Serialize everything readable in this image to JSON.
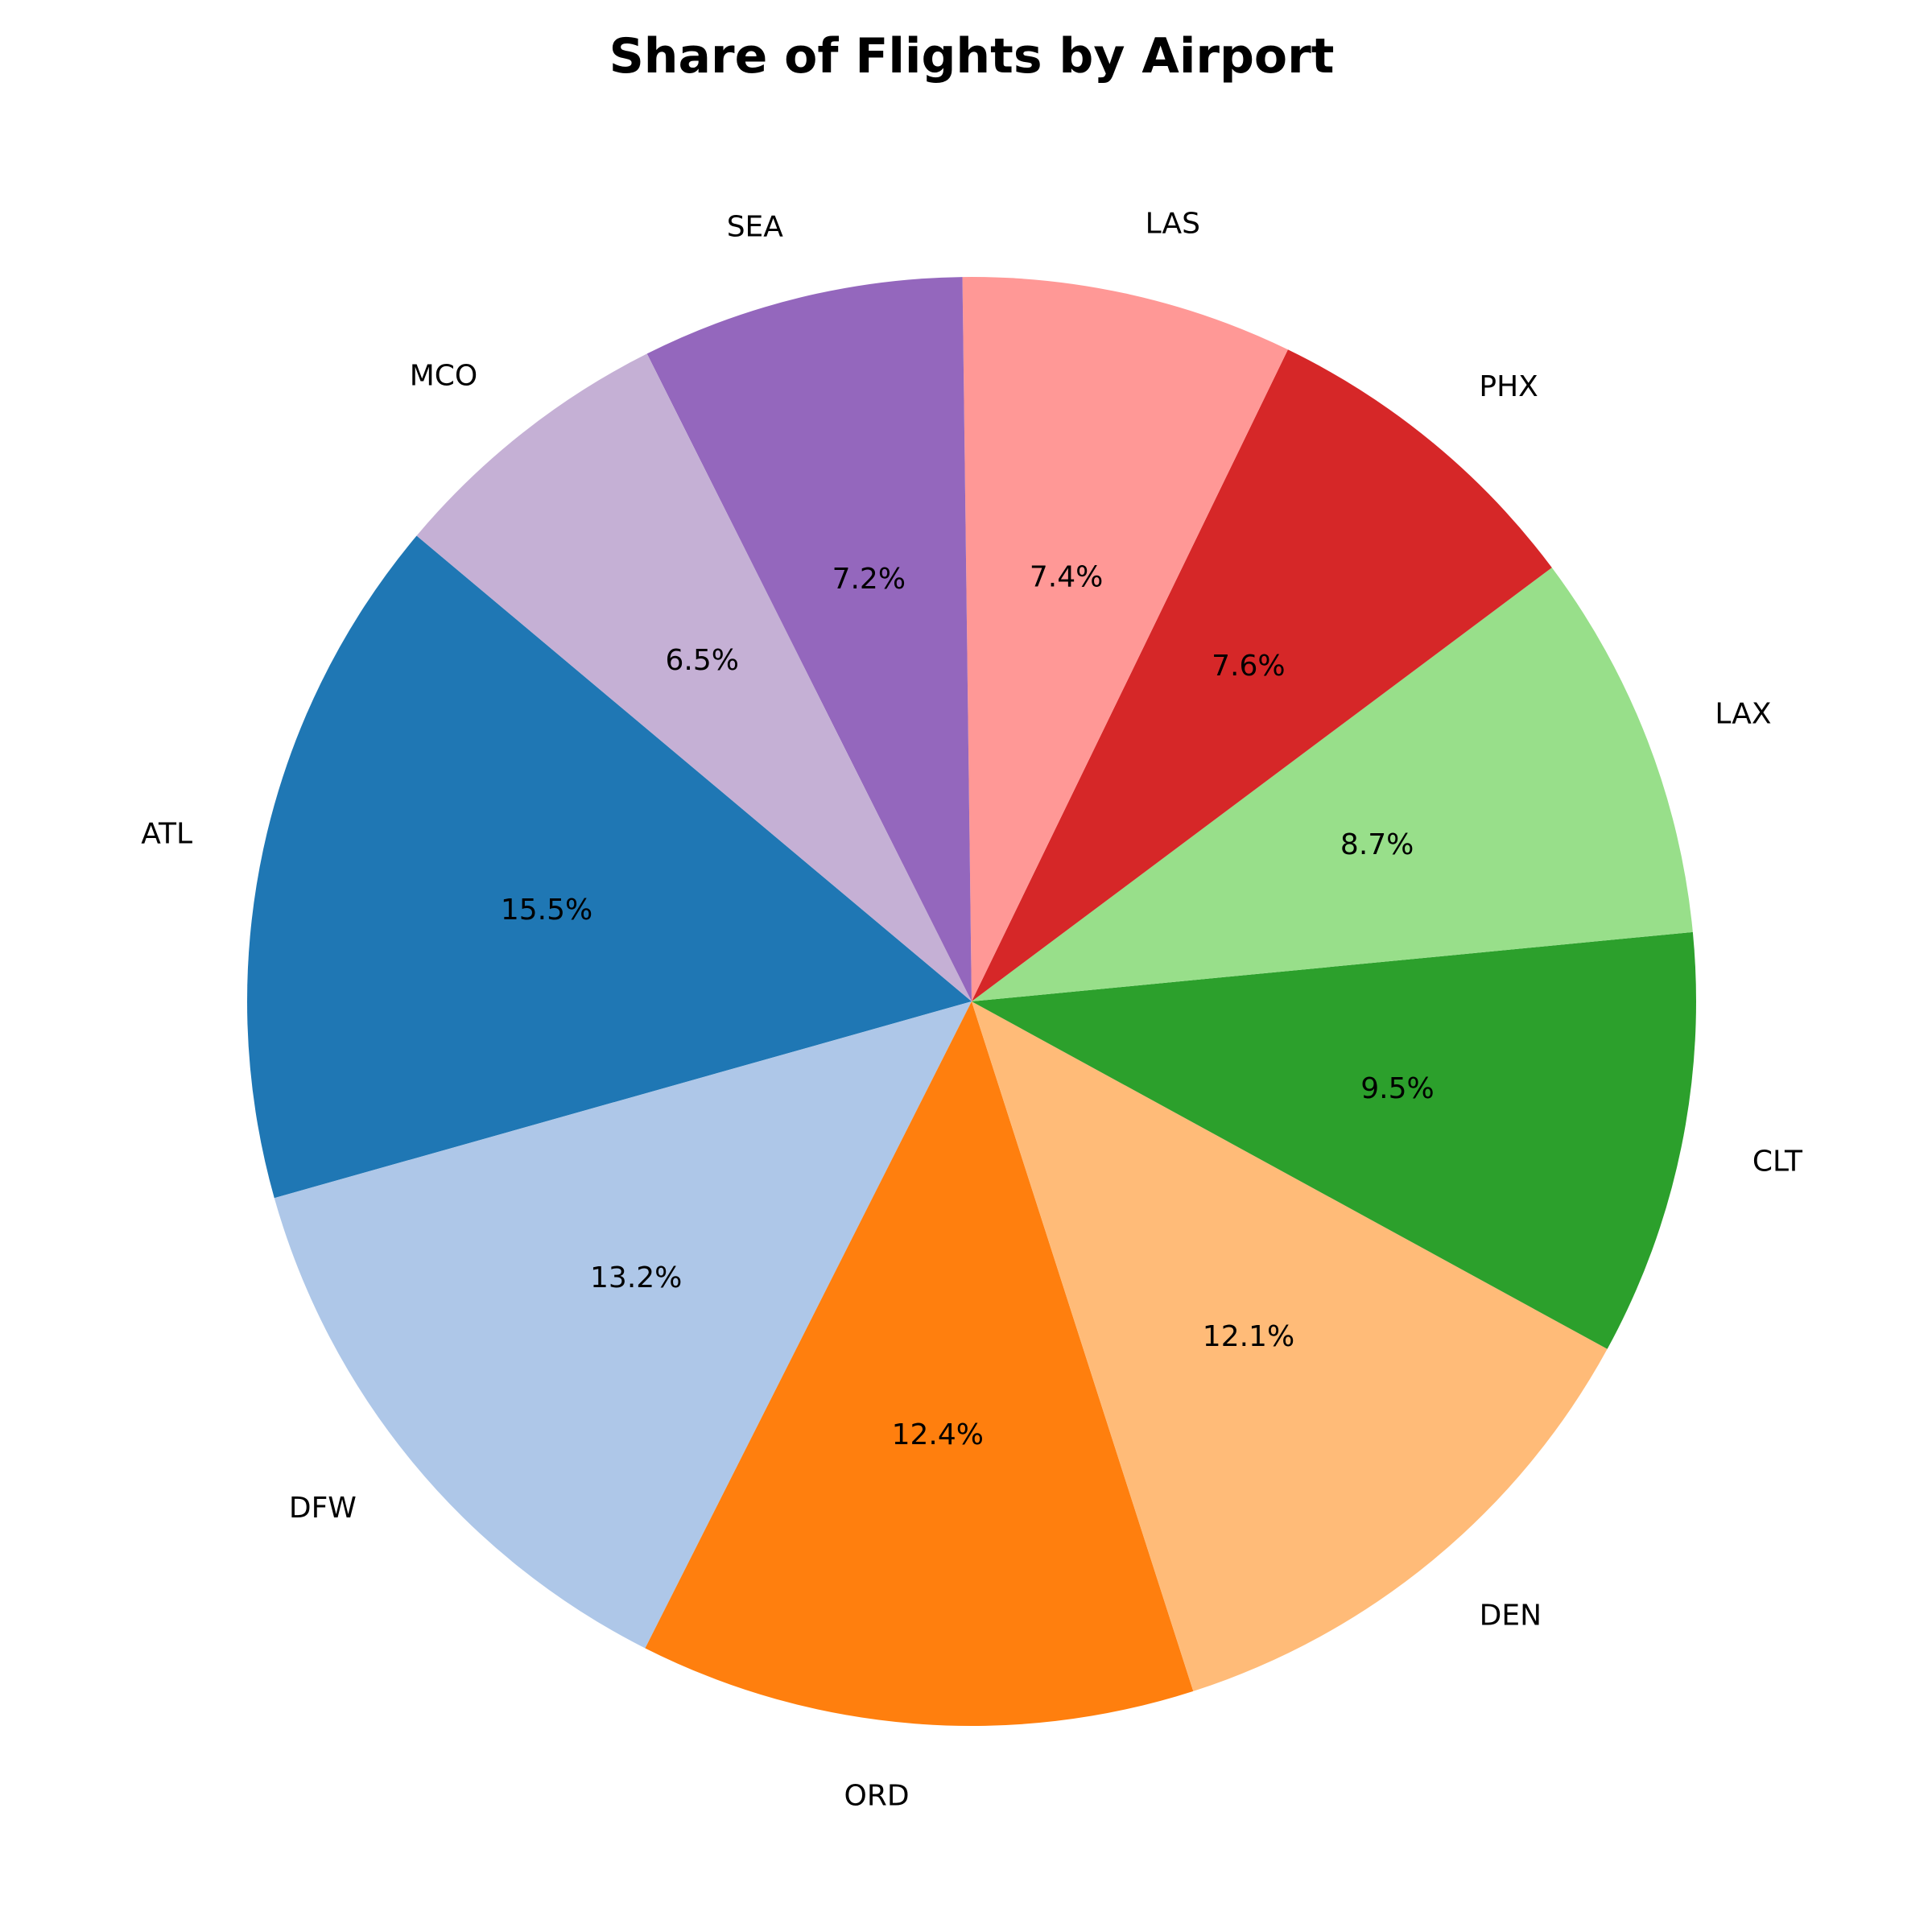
{
  "chart_data": {
    "type": "pie",
    "title": "Share of Flights by Airport",
    "categories": [
      "ATL",
      "DFW",
      "ORD",
      "DEN",
      "CLT",
      "LAX",
      "PHX",
      "LAS",
      "SEA",
      "MCO"
    ],
    "values": [
      15.5,
      13.2,
      12.4,
      12.1,
      9.5,
      8.7,
      7.6,
      7.4,
      7.2,
      6.5
    ],
    "value_labels": [
      "15.5%",
      "13.2%",
      "12.4%",
      "12.1%",
      "9.5%",
      "8.7%",
      "7.6%",
      "7.4%",
      "7.2%",
      "6.5%"
    ],
    "colors": [
      "#1f77b4",
      "#aec7e8",
      "#ff7f0e",
      "#ffbb78",
      "#2ca02c",
      "#98df8a",
      "#d62728",
      "#ff9896",
      "#9467bd",
      "#c5b0d5"
    ],
    "start_angle_deg": 140,
    "direction": "counterclockwise",
    "legend": "none"
  }
}
